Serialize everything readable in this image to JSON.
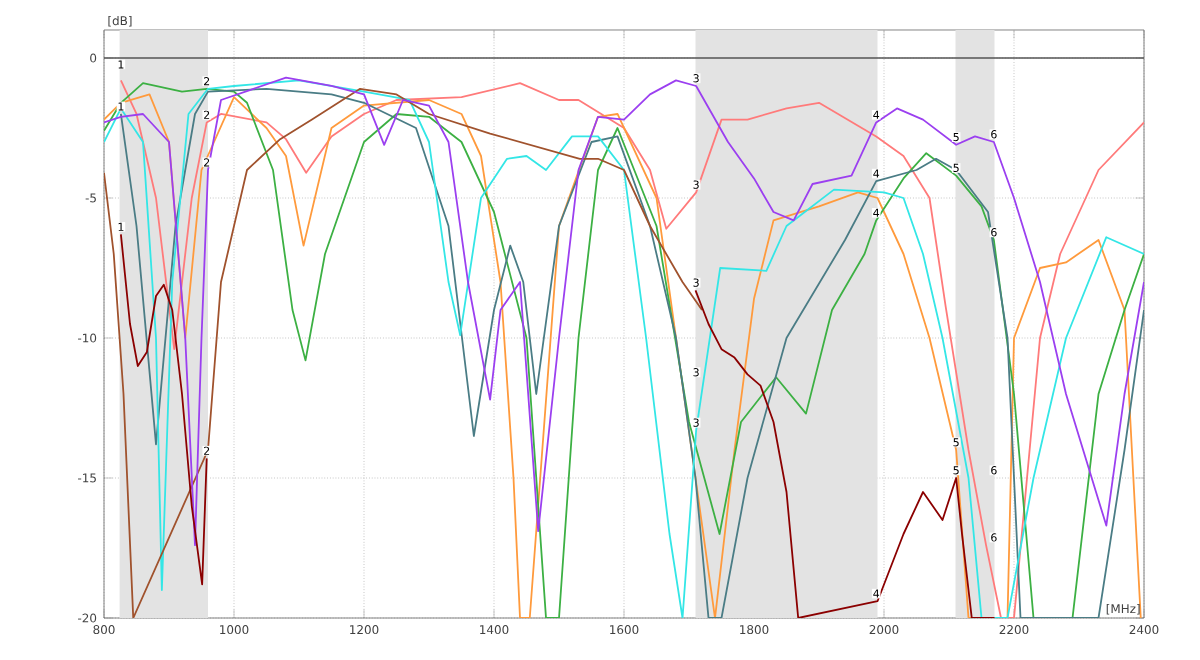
{
  "chart_data": {
    "type": "line",
    "xlabel": "[MHz]",
    "ylabel": "[dB]",
    "xlim": [
      800,
      2400
    ],
    "ylim": [
      -20,
      1
    ],
    "xticks": [
      800,
      1000,
      1200,
      1400,
      1600,
      1800,
      2000,
      2200,
      2400
    ],
    "yticks": [
      0,
      -5,
      -10,
      -15,
      -20
    ],
    "grid": true,
    "ref_lines": [
      {
        "axis": "y",
        "value": 0,
        "color": "#555555"
      }
    ],
    "bands": [
      {
        "axis": "x",
        "from": 824,
        "to": 960,
        "color": "#e3e3e3"
      },
      {
        "axis": "x",
        "from": 1710,
        "to": 1990,
        "color": "#e3e3e3"
      },
      {
        "axis": "x",
        "from": 2110,
        "to": 2170,
        "color": "#e3e3e3"
      }
    ],
    "series": [
      {
        "color": "#ff7a7a",
        "x": [
          826,
          850,
          880,
          908,
          935,
          958,
          980,
          1050,
          1080,
          1111,
          1150,
          1200,
          1250,
          1350,
          1440,
          1500,
          1530,
          1600,
          1640,
          1665,
          1711,
          1750,
          1790,
          1850,
          1900,
          1988,
          2030,
          2070,
          2095,
          2130,
          2157,
          2180,
          2200,
          2240,
          2271,
          2330,
          2400
        ],
        "values": [
          -0.8,
          -2,
          -5,
          -10.4,
          -5,
          -2.3,
          -2,
          -2.3,
          -2.9,
          -4.1,
          -2.8,
          -2,
          -1.5,
          -1.4,
          -0.9,
          -1.5,
          -1.5,
          -2.5,
          -4,
          -6.1,
          -4.8,
          -2.2,
          -2.2,
          -1.8,
          -1.6,
          -2.8,
          -3.5,
          -5,
          -8.9,
          -14,
          -17.4,
          -20,
          -20,
          -10,
          -7,
          -4,
          -2.3
        ]
      },
      {
        "color": "#ff9a3c",
        "x": [
          800,
          826,
          870,
          900,
          925,
          950,
          1000,
          1050,
          1080,
          1107,
          1150,
          1200,
          1300,
          1350,
          1380,
          1410,
          1430,
          1440,
          1455,
          1500,
          1560,
          1590,
          1650,
          1710,
          1740,
          1770,
          1800,
          1830,
          1900,
          1960,
          1990,
          2030,
          2070,
          2111,
          2130,
          2190,
          2200,
          2240,
          2280,
          2330,
          2370,
          2395
        ],
        "values": [
          -2.2,
          -1.6,
          -1.3,
          -3,
          -10,
          -4,
          -1.4,
          -2.5,
          -3.5,
          -6.7,
          -2.5,
          -1.7,
          -1.5,
          -2,
          -3.5,
          -8,
          -15,
          -20,
          -20,
          -6,
          -2.1,
          -2,
          -5,
          -15,
          -20,
          -14,
          -8.6,
          -5.8,
          -5.3,
          -4.8,
          -5,
          -7,
          -10,
          -14,
          -20,
          -20,
          -10,
          -7.5,
          -7.3,
          -6.5,
          -9,
          -20
        ]
      },
      {
        "color": "#3cb043",
        "x": [
          800,
          826,
          860,
          920,
          958,
          1000,
          1020,
          1060,
          1090,
          1110,
          1140,
          1200,
          1250,
          1300,
          1350,
          1400,
          1450,
          1480,
          1500,
          1530,
          1560,
          1590,
          1650,
          1700,
          1747,
          1780,
          1834,
          1880,
          1920,
          1970,
          1988,
          2030,
          2065,
          2111,
          2150,
          2169,
          2200,
          2230,
          2290,
          2330,
          2370,
          2400
        ],
        "values": [
          -2.6,
          -1.6,
          -0.9,
          -1.2,
          -1.1,
          -1.2,
          -1.6,
          -4,
          -9,
          -10.8,
          -7,
          -3,
          -2,
          -2.1,
          -3,
          -5.5,
          -10,
          -20,
          -20,
          -10,
          -4,
          -2.5,
          -6,
          -13,
          -17,
          -13,
          -11.4,
          -12.7,
          -9,
          -7,
          -5.8,
          -4.3,
          -3.4,
          -4.2,
          -5.3,
          -6.5,
          -12,
          -20,
          -20,
          -12,
          -9,
          -7
        ]
      },
      {
        "color": "#4a7c85",
        "x": [
          826,
          850,
          880,
          910,
          940,
          960,
          1050,
          1150,
          1200,
          1280,
          1330,
          1369,
          1400,
          1425,
          1445,
          1465,
          1500,
          1550,
          1590,
          1640,
          1680,
          1710,
          1730,
          1750,
          1790,
          1850,
          1940,
          1988,
          2050,
          2080,
          2111,
          2160,
          2190,
          2210,
          2330,
          2370,
          2400
        ],
        "values": [
          -2,
          -6,
          -13.8,
          -6,
          -2,
          -1.2,
          -1.1,
          -1.3,
          -1.6,
          -2.5,
          -6,
          -13.5,
          -9,
          -6.7,
          -8,
          -12,
          -6,
          -3,
          -2.8,
          -6,
          -10,
          -15,
          -20,
          -20,
          -15,
          -10,
          -6.5,
          -4.4,
          -4,
          -3.6,
          -4,
          -5.5,
          -10,
          -20,
          -20,
          -14,
          -9
        ]
      },
      {
        "color": "#33e6e6",
        "x": [
          800,
          826,
          860,
          880,
          889,
          905,
          930,
          960,
          1000,
          1100,
          1200,
          1270,
          1300,
          1330,
          1348,
          1380,
          1420,
          1450,
          1480,
          1520,
          1560,
          1600,
          1634,
          1670,
          1690,
          1711,
          1748,
          1819,
          1850,
          1923,
          2000,
          2030,
          2060,
          2090,
          2130,
          2150,
          2190,
          2230,
          2280,
          2342,
          2400
        ],
        "values": [
          -3,
          -1.8,
          -3,
          -10,
          -19,
          -8,
          -2,
          -1.1,
          -1,
          -0.8,
          -1.2,
          -1.5,
          -3,
          -8,
          -9.9,
          -5,
          -3.6,
          -3.5,
          -4,
          -2.8,
          -2.8,
          -4,
          -10,
          -17,
          -20,
          -13.3,
          -7.5,
          -7.6,
          -6,
          -4.7,
          -4.8,
          -5,
          -7,
          -10,
          -15,
          -20,
          -20,
          -15,
          -10,
          -6.4,
          -7
        ]
      },
      {
        "color": "#a0522d",
        "x": [
          800,
          815,
          830,
          845,
          960,
          980,
          1020,
          1071,
          1120,
          1194,
          1250,
          1300,
          1394,
          1532,
          1560,
          1600,
          1640,
          1690,
          1720
        ],
        "values": [
          -4.1,
          -7,
          -12,
          -20,
          -14,
          -8,
          -4,
          -2.9,
          -2.2,
          -1.1,
          -1.3,
          -2,
          -2.7,
          -3.6,
          -3.6,
          -4,
          -6,
          -8,
          -9
        ]
      },
      {
        "color": "#9b3ff0",
        "x": [
          800,
          826,
          860,
          900,
          925,
          940,
          950,
          960,
          980,
          1080,
          1150,
          1200,
          1231,
          1260,
          1300,
          1330,
          1360,
          1394,
          1410,
          1440,
          1468,
          1500,
          1530,
          1560,
          1600,
          1640,
          1680,
          1711,
          1760,
          1800,
          1830,
          1861,
          1890,
          1950,
          1988,
          2020,
          2060,
          2111,
          2140,
          2169,
          2200,
          2240,
          2280,
          2342,
          2370,
          2400
        ],
        "values": [
          -2.3,
          -2.1,
          -2,
          -3,
          -10,
          -17.4,
          -10,
          -4,
          -1.5,
          -0.7,
          -1,
          -1.3,
          -3.1,
          -1.5,
          -1.7,
          -3,
          -8,
          -12.2,
          -9,
          -8,
          -16.9,
          -10,
          -4,
          -2.1,
          -2.2,
          -1.3,
          -0.8,
          -1,
          -3,
          -4.3,
          -5.5,
          -5.8,
          -4.5,
          -4.2,
          -2.3,
          -1.8,
          -2.2,
          -3.1,
          -2.8,
          -3,
          -5,
          -8,
          -12,
          -16.7,
          -12,
          -8
        ]
      },
      {
        "color": "#8b0000",
        "x": [
          826,
          840,
          852,
          866,
          880,
          892,
          905,
          920,
          935,
          951,
          958,
          961,
          1710,
          1730,
          1750,
          1770,
          1790,
          1810,
          1830,
          1850,
          1868,
          1990,
          2030,
          2060,
          2090,
          2111,
          2120,
          2135,
          2170
        ],
        "values": [
          -6.3,
          -9.5,
          -11,
          -10.5,
          -8.5,
          -8.1,
          -9,
          -12,
          -16,
          -18.8,
          -14.3,
          null,
          -8.3,
          -9.5,
          -10.4,
          -10.7,
          -11.3,
          -11.7,
          -13,
          -15.5,
          -20,
          -19.4,
          -17,
          -15.5,
          -16.5,
          -15,
          -17,
          -20,
          -20
        ]
      }
    ],
    "annotations": [
      {
        "text": "1",
        "x": 826,
        "y": -0.5
      },
      {
        "text": "1",
        "x": 826,
        "y": -2
      },
      {
        "text": "1",
        "x": 826,
        "y": -6.3
      },
      {
        "text": "2",
        "x": 958,
        "y": -1.1
      },
      {
        "text": "2",
        "x": 958,
        "y": -2.3
      },
      {
        "text": "2",
        "x": 958,
        "y": -4
      },
      {
        "text": "2",
        "x": 958,
        "y": -14.3
      },
      {
        "text": "3",
        "x": 1711,
        "y": -1
      },
      {
        "text": "3",
        "x": 1711,
        "y": -4.8
      },
      {
        "text": "3",
        "x": 1711,
        "y": -8.3
      },
      {
        "text": "3",
        "x": 1711,
        "y": -11.5
      },
      {
        "text": "3",
        "x": 1711,
        "y": -13.3
      },
      {
        "text": "4",
        "x": 1988,
        "y": -2.3
      },
      {
        "text": "4",
        "x": 1988,
        "y": -4.4
      },
      {
        "text": "4",
        "x": 1988,
        "y": -5.8
      },
      {
        "text": "4",
        "x": 1988,
        "y": -19.4
      },
      {
        "text": "5",
        "x": 2111,
        "y": -3.1
      },
      {
        "text": "5",
        "x": 2111,
        "y": -4.2
      },
      {
        "text": "5",
        "x": 2111,
        "y": -14
      },
      {
        "text": "5",
        "x": 2111,
        "y": -15
      },
      {
        "text": "6",
        "x": 2169,
        "y": -3
      },
      {
        "text": "6",
        "x": 2169,
        "y": -6.5
      },
      {
        "text": "6",
        "x": 2169,
        "y": -15
      },
      {
        "text": "6",
        "x": 2169,
        "y": -17.4
      }
    ]
  }
}
